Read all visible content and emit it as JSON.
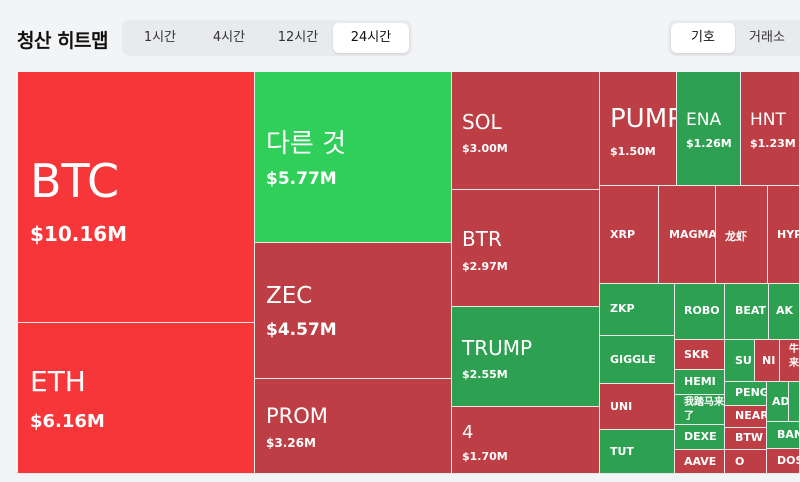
{
  "header": {
    "title": "청산 히트맵",
    "time_options": [
      "1시간",
      "4시간",
      "12시간",
      "24시간"
    ],
    "time_selected": "24시간",
    "group_options": [
      "기호",
      "거래소"
    ],
    "group_selected": "기호"
  },
  "colors": {
    "loss_strong": "#f73639",
    "loss": "#bd3e45",
    "gain_strong": "#30cf5a",
    "gain": "#2ea052"
  },
  "tiles": {
    "btc": {
      "symbol": "BTC",
      "value": "$10.16M"
    },
    "eth": {
      "symbol": "ETH",
      "value": "$6.16M"
    },
    "other": {
      "symbol": "다른 것",
      "value": "$5.77M"
    },
    "zec": {
      "symbol": "ZEC",
      "value": "$4.57M"
    },
    "prom": {
      "symbol": "PROM",
      "value": "$3.26M"
    },
    "sol": {
      "symbol": "SOL",
      "value": "$3.00M"
    },
    "btr": {
      "symbol": "BTR",
      "value": "$2.97M"
    },
    "trump": {
      "symbol": "TRUMP",
      "value": "$2.55M"
    },
    "four": {
      "symbol": "4",
      "value": "$1.70M"
    },
    "pump": {
      "symbol": "PUMP",
      "value": "$1.50M"
    },
    "ena": {
      "symbol": "ENA",
      "value": "$1.26M"
    },
    "hnt": {
      "symbol": "HNT",
      "value": "$1.23M"
    },
    "xrp": {
      "symbol": "XRP"
    },
    "magma": {
      "symbol": "MAGMA"
    },
    "longxia": {
      "symbol": "龙虾"
    },
    "hyp": {
      "symbol": "HYP"
    },
    "zkp": {
      "symbol": "ZKP"
    },
    "robo": {
      "symbol": "ROBO"
    },
    "beat": {
      "symbol": "BEAT"
    },
    "ak": {
      "symbol": "AK"
    },
    "giggle": {
      "symbol": "GIGGLE"
    },
    "skr": {
      "symbol": "SKR"
    },
    "su": {
      "symbol": "SU"
    },
    "ni": {
      "symbol": "NI"
    },
    "niu": {
      "symbol": "牛来"
    },
    "uni": {
      "symbol": "UNI"
    },
    "hemi": {
      "symbol": "HEMI"
    },
    "woyou": {
      "symbol": "我踏马来了"
    },
    "peng": {
      "symbol": "PENG"
    },
    "ad": {
      "symbol": "AD"
    },
    "near": {
      "symbol": "NEAR"
    },
    "tut": {
      "symbol": "TUT"
    },
    "dexe": {
      "symbol": "DEXE"
    },
    "btw": {
      "symbol": "BTW"
    },
    "ban": {
      "symbol": "BAN"
    },
    "aave": {
      "symbol": "AAVE"
    },
    "o": {
      "symbol": "O"
    },
    "dos": {
      "symbol": "DOS"
    }
  }
}
